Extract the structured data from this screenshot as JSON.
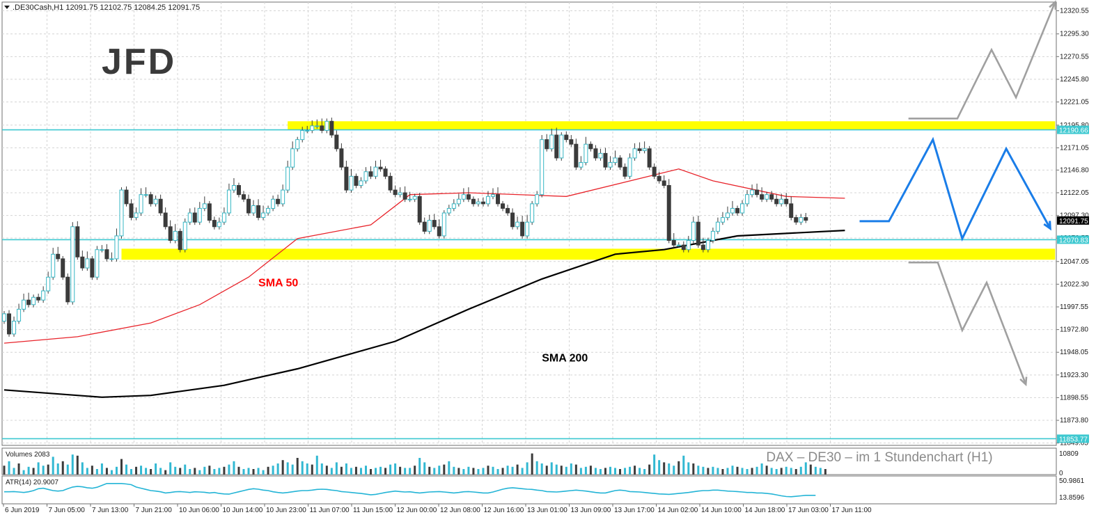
{
  "header": {
    "symbol_info": ".DE30Cash,H1  12091.75 12102.75 12084.25 12091.75"
  },
  "logo": {
    "text": "JFD"
  },
  "chart_data": {
    "type": "candlestick",
    "symbol": ".DE30Cash",
    "timeframe": "H1",
    "ohlc_last": {
      "open": 12091.75,
      "high": 12102.75,
      "low": 12084.25,
      "close": 12091.75
    },
    "ylim": [
      11846.5,
      12330.0
    ],
    "y_ticks": [
      "12320.55",
      "12295.30",
      "12270.55",
      "12245.80",
      "12221.05",
      "12195.80",
      "12171.05",
      "12146.80",
      "12122.05",
      "12097.30",
      "12072.55",
      "12047.05",
      "12022.30",
      "11997.55",
      "11972.80",
      "11948.05",
      "11923.30",
      "11898.55",
      "11873.80",
      "11849.05"
    ],
    "x_ticks": [
      "6 Jun 2019",
      "7 Jun 05:00",
      "7 Jun 13:00",
      "7 Jun 21:00",
      "10 Jun 06:00",
      "10 Jun 14:00",
      "10 Jun 23:00",
      "11 Jun 07:00",
      "11 Jun 15:00",
      "12 Jun 00:00",
      "12 Jun 08:00",
      "12 Jun 16:00",
      "13 Jun 01:00",
      "13 Jun 09:00",
      "13 Jun 17:00",
      "14 Jun 02:00",
      "14 Jun 10:00",
      "14 Jun 18:00",
      "17 Jun 03:00",
      "17 Jun 11:00"
    ],
    "price_labels": [
      {
        "value": 12190.66,
        "text": "12190.66",
        "color": "#3dc8d0"
      },
      {
        "value": 12091.75,
        "text": "12091.75",
        "color": "#000000"
      },
      {
        "value": 12070.83,
        "text": "12070.83",
        "color": "#3dc8d0"
      },
      {
        "value": 11853.77,
        "text": "11853.77",
        "color": "#3dc8d0"
      }
    ],
    "horizontal_lines": [
      12190.66,
      12070.83,
      11853.77
    ],
    "zones": [
      {
        "from_bar": 58,
        "to_bar": 215,
        "low": 12191,
        "high": 12200,
        "color": "#ffff00"
      },
      {
        "from_bar": 24,
        "to_bar": 215,
        "low": 12049,
        "high": 12061,
        "color": "#ffff00"
      }
    ],
    "close_series": [
      11990,
      11968,
      11982,
      11995,
      12005,
      12000,
      12008,
      12005,
      12015,
      12030,
      12055,
      12050,
      12030,
      12003,
      12085,
      12052,
      12040,
      12050,
      12030,
      12060,
      12060,
      12050,
      12050,
      12075,
      12125,
      12110,
      12095,
      12100,
      12120,
      12120,
      12110,
      12115,
      12100,
      12085,
      12070,
      12080,
      12060,
      12090,
      12100,
      12090,
      12105,
      12110,
      12092,
      12085,
      12090,
      12100,
      12125,
      12130,
      12120,
      12115,
      12100,
      12108,
      12095,
      12100,
      12105,
      12115,
      12110,
      12125,
      12150,
      12170,
      12180,
      12190,
      12190,
      12195,
      12195,
      12190,
      12200,
      12185,
      12170,
      12150,
      12125,
      12140,
      12130,
      12135,
      12145,
      12140,
      12150,
      12148,
      12140,
      12125,
      12120,
      12122,
      12115,
      12115,
      12118,
      12090,
      12080,
      12092,
      12085,
      12075,
      12100,
      12105,
      12110,
      12115,
      12120,
      12115,
      12110,
      12112,
      12110,
      12118,
      12120,
      12110,
      12105,
      12100,
      12085,
      12090,
      12075,
      12090,
      12110,
      12120,
      12180,
      12170,
      12185,
      12160,
      12185,
      12180,
      12175,
      12150,
      12155,
      12175,
      12170,
      12160,
      12165,
      12150,
      12155,
      12160,
      12150,
      12140,
      12160,
      12170,
      12168,
      12170,
      12150,
      12140,
      12135,
      12130,
      12070,
      12065,
      12065,
      12060,
      12070,
      12090,
      12065,
      12060,
      12070,
      12080,
      12090,
      12095,
      12100,
      12105,
      12100,
      12110,
      12120,
      12125,
      12120,
      12115,
      12120,
      12115,
      12110,
      12115,
      12110,
      12095,
      12090,
      12095,
      12092
    ],
    "sma50": [
      [
        0,
        11958
      ],
      [
        15,
        11965
      ],
      [
        30,
        11980
      ],
      [
        40,
        12000
      ],
      [
        50,
        12030
      ],
      [
        60,
        12072
      ],
      [
        75,
        12087
      ],
      [
        83,
        12120
      ],
      [
        95,
        12122
      ],
      [
        115,
        12118
      ],
      [
        138,
        12148
      ],
      [
        145,
        12135
      ],
      [
        160,
        12118
      ],
      [
        172,
        12116
      ]
    ],
    "sma200": [
      [
        0,
        11907
      ],
      [
        20,
        11899
      ],
      [
        30,
        11901
      ],
      [
        45,
        11912
      ],
      [
        60,
        11930
      ],
      [
        80,
        11960
      ],
      [
        95,
        11995
      ],
      [
        110,
        12028
      ],
      [
        125,
        12055
      ],
      [
        135,
        12060
      ],
      [
        150,
        12075
      ],
      [
        172,
        12081
      ]
    ],
    "sma_labels": [
      {
        "text": "SMA 50",
        "color": "#ff0000",
        "bar": 52,
        "value": 12020
      },
      {
        "text": "SMA 200",
        "color": "#000000",
        "bar": 110,
        "value": 11938
      }
    ],
    "volume": {
      "label": "Volumes 2083",
      "ticks": [
        "10809",
        "0"
      ],
      "values": [
        0.4,
        0.6,
        0.3,
        0.5,
        0.2,
        0.35,
        0.3,
        0.55,
        0.4,
        0.45,
        0.8,
        0.5,
        0.6,
        0.45,
        0.9,
        0.85,
        0.55,
        0.3,
        0.4,
        0.25,
        0.5,
        0.3,
        0.2,
        0.35,
        0.7,
        0.45,
        0.25,
        0.35,
        0.4,
        0.3,
        0.25,
        0.5,
        0.3,
        0.2,
        0.55,
        0.35,
        0.3,
        0.45,
        0.25,
        0.3,
        0.2,
        0.35,
        0.4,
        0.25,
        0.3,
        0.35,
        0.45,
        0.6,
        0.35,
        0.25,
        0.3,
        0.25,
        0.3,
        0.2,
        0.35,
        0.4,
        0.5,
        0.65,
        0.55,
        0.45,
        0.75,
        0.6,
        0.5,
        0.45,
        0.85,
        0.5,
        0.4,
        0.3,
        0.55,
        0.35,
        0.5,
        0.3,
        0.35,
        0.3,
        0.4,
        0.25,
        0.3,
        0.35,
        0.3,
        0.45,
        0.5,
        0.35,
        0.3,
        0.3,
        0.4,
        0.75,
        0.55,
        0.35,
        0.3,
        0.4,
        0.45,
        0.6,
        0.35,
        0.3,
        0.25,
        0.35,
        0.3,
        0.25,
        0.3,
        0.4,
        0.35,
        0.25,
        0.3,
        0.4,
        0.35,
        0.45,
        0.3,
        0.55,
        0.95,
        0.6,
        0.5,
        0.4,
        0.55,
        0.45,
        0.4,
        0.35,
        0.5,
        0.45,
        0.3,
        0.35,
        0.4,
        0.3,
        0.25,
        0.3,
        0.35,
        0.3,
        0.25,
        0.3,
        0.35,
        0.4,
        0.3,
        0.25,
        0.45,
        0.9,
        0.65,
        0.55,
        0.5,
        0.4,
        0.6,
        0.85,
        0.55,
        0.5,
        0.4,
        0.35,
        0.3,
        0.35,
        0.3,
        0.25,
        0.3,
        0.4,
        0.35,
        0.3,
        0.25,
        0.3,
        0.35,
        0.5,
        0.4,
        0.3,
        0.25,
        0.3,
        0.35,
        0.3,
        0.25,
        0.35,
        0.55,
        0.45,
        0.35,
        0.3,
        0.25
      ]
    },
    "atr": {
      "label": "ATR(14) 20.9007",
      "ticks": [
        "50.9861",
        "13.8596"
      ],
      "values": [
        0.45,
        0.45,
        0.46,
        0.44,
        0.42,
        0.45,
        0.5,
        0.58,
        0.6,
        0.55,
        0.5,
        0.48,
        0.5,
        0.58,
        0.65,
        0.68,
        0.66,
        0.62,
        0.6,
        0.64,
        0.72,
        0.8,
        0.8,
        0.8,
        0.8,
        0.78,
        0.75,
        0.65,
        0.6,
        0.55,
        0.5,
        0.48,
        0.45,
        0.4,
        0.42,
        0.45,
        0.46,
        0.44,
        0.42,
        0.45,
        0.44,
        0.43,
        0.4,
        0.42,
        0.38,
        0.36,
        0.35,
        0.4,
        0.45,
        0.5,
        0.55,
        0.58,
        0.56,
        0.52,
        0.5,
        0.45,
        0.42,
        0.4,
        0.42,
        0.45,
        0.48,
        0.5,
        0.5,
        0.52,
        0.55,
        0.56,
        0.55,
        0.52,
        0.5,
        0.46,
        0.44,
        0.42,
        0.4,
        0.38,
        0.35,
        0.32,
        0.34,
        0.38,
        0.42,
        0.45,
        0.48,
        0.46,
        0.44,
        0.45,
        0.42,
        0.4,
        0.42,
        0.44,
        0.45,
        0.46,
        0.44,
        0.42,
        0.4,
        0.42,
        0.45,
        0.46,
        0.44,
        0.42,
        0.4,
        0.4,
        0.44,
        0.5,
        0.56,
        0.6,
        0.62,
        0.6,
        0.58,
        0.56,
        0.55,
        0.52,
        0.5,
        0.46,
        0.45,
        0.44,
        0.46,
        0.48,
        0.5,
        0.52,
        0.5,
        0.48,
        0.45,
        0.42,
        0.4,
        0.4,
        0.45,
        0.5,
        0.52,
        0.5,
        0.46,
        0.45,
        0.44,
        0.42,
        0.4,
        0.38,
        0.36,
        0.35,
        0.34,
        0.36,
        0.38,
        0.4,
        0.42,
        0.45,
        0.48,
        0.5,
        0.5,
        0.52,
        0.52,
        0.5,
        0.48,
        0.47,
        0.46,
        0.44,
        0.42,
        0.42,
        0.4,
        0.4,
        0.38,
        0.36,
        0.32,
        0.28,
        0.25,
        0.24,
        0.26,
        0.28,
        0.3,
        0.3,
        0.3
      ]
    },
    "scenarios": [
      {
        "name": "bull",
        "color": "#a0a0a0",
        "path": [
          [
            185,
            12203
          ],
          [
            195,
            12203
          ],
          [
            202,
            12278
          ],
          [
            207,
            12226
          ],
          [
            215,
            12330
          ]
        ]
      },
      {
        "name": "base",
        "color": "#1a7de8",
        "path": [
          [
            175,
            12091
          ],
          [
            181,
            12091
          ],
          [
            190,
            12180
          ],
          [
            196,
            12072
          ],
          [
            205,
            12170
          ],
          [
            214,
            12083
          ]
        ]
      },
      {
        "name": "bear",
        "color": "#a0a0a0",
        "path": [
          [
            185,
            12046
          ],
          [
            191,
            12046
          ],
          [
            196,
            11972
          ],
          [
            201,
            12024
          ],
          [
            209,
            11913
          ]
        ]
      }
    ]
  },
  "watermark": {
    "text": "DAX – DE30 –  im  1 Stundenchart (H1)"
  }
}
